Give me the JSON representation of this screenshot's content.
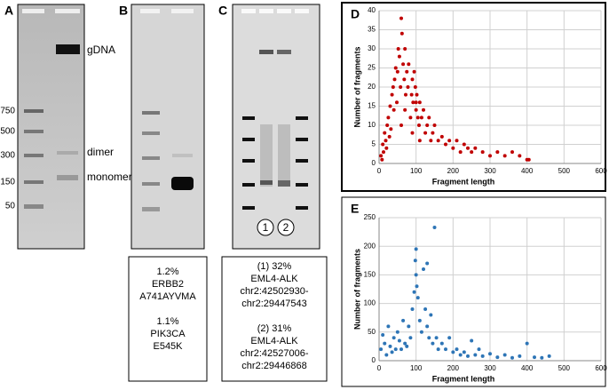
{
  "panel_labels": [
    "A",
    "B",
    "C",
    "D",
    "E"
  ],
  "gels": {
    "A": {
      "ladder": [
        "750",
        "500",
        "300",
        "150",
        "50"
      ],
      "bands": [
        "gDNA",
        "dimer",
        "monomer"
      ]
    },
    "C": {
      "lanes": [
        "1",
        "2"
      ]
    }
  },
  "notes": {
    "B": {
      "lines": [
        "1.2%",
        "ERBB2",
        "A741AYVMA",
        "1.1%",
        "PIK3CA",
        "E545K"
      ]
    },
    "C": {
      "lines": [
        "(1)  32%",
        "EML4-ALK",
        "chr2:42502930-",
        "chr2:29447543",
        "(2)  31%",
        "EML4-ALK",
        "chr2:42527006-",
        "chr2:29446868"
      ]
    }
  },
  "chart_data": [
    {
      "type": "scatter",
      "x_label": "Fragment length",
      "y_label": "Number of fragments",
      "color": "#c00000",
      "grid": true,
      "xlim": [
        0,
        600
      ],
      "xticks": [
        0,
        100,
        200,
        300,
        400,
        500,
        600
      ],
      "ylim": [
        0,
        40
      ],
      "yticks": [
        0,
        5,
        10,
        15,
        20,
        25,
        30,
        35,
        40
      ],
      "x": [
        5,
        8,
        10,
        12,
        15,
        18,
        20,
        22,
        25,
        28,
        30,
        32,
        35,
        38,
        40,
        42,
        45,
        48,
        50,
        52,
        55,
        58,
        60,
        62,
        65,
        68,
        70,
        72,
        75,
        78,
        80,
        85,
        88,
        90,
        92,
        95,
        98,
        100,
        102,
        105,
        108,
        110,
        115,
        120,
        125,
        130,
        135,
        140,
        145,
        150,
        160,
        170,
        180,
        190,
        200,
        210,
        220,
        230,
        240,
        250,
        260,
        280,
        300,
        320,
        340,
        360,
        380,
        400,
        405,
        60,
        70,
        90,
        100,
        110
      ],
      "y": [
        2,
        1,
        5,
        3,
        8,
        6,
        4,
        10,
        12,
        7,
        15,
        9,
        18,
        20,
        14,
        22,
        25,
        16,
        24,
        30,
        28,
        20,
        38,
        34,
        26,
        22,
        30,
        18,
        24,
        20,
        26,
        12,
        18,
        22,
        16,
        24,
        20,
        14,
        18,
        12,
        10,
        16,
        12,
        14,
        8,
        10,
        12,
        6,
        8,
        10,
        6,
        7,
        5,
        6,
        4,
        6,
        3,
        5,
        4,
        3,
        4,
        3,
        2,
        3,
        2,
        3,
        2,
        1,
        1,
        10,
        14,
        8,
        16,
        6
      ]
    },
    {
      "type": "scatter",
      "x_label": "Fragment length",
      "y_label": "Number of fragments",
      "color": "#2e75b6",
      "grid": true,
      "xlim": [
        0,
        600
      ],
      "xticks": [
        0,
        100,
        200,
        300,
        400,
        500,
        600
      ],
      "ylim": [
        0,
        250
      ],
      "yticks": [
        0,
        50,
        100,
        150,
        200,
        250
      ],
      "x": [
        5,
        10,
        15,
        20,
        25,
        30,
        35,
        40,
        45,
        50,
        55,
        60,
        65,
        70,
        75,
        80,
        85,
        90,
        95,
        100,
        100,
        105,
        110,
        115,
        120,
        125,
        130,
        135,
        140,
        145,
        150,
        155,
        160,
        170,
        180,
        190,
        200,
        210,
        220,
        230,
        240,
        250,
        260,
        270,
        280,
        300,
        320,
        340,
        360,
        380,
        400,
        420,
        440,
        460,
        98,
        102,
        130
      ],
      "y": [
        20,
        45,
        30,
        10,
        60,
        25,
        15,
        40,
        20,
        50,
        35,
        20,
        70,
        30,
        25,
        60,
        40,
        90,
        120,
        195,
        150,
        110,
        70,
        50,
        160,
        90,
        60,
        40,
        80,
        30,
        233,
        40,
        20,
        30,
        20,
        40,
        15,
        20,
        10,
        15,
        8,
        35,
        10,
        20,
        8,
        12,
        6,
        10,
        5,
        8,
        30,
        6,
        5,
        8,
        175,
        130,
        170
      ]
    }
  ]
}
